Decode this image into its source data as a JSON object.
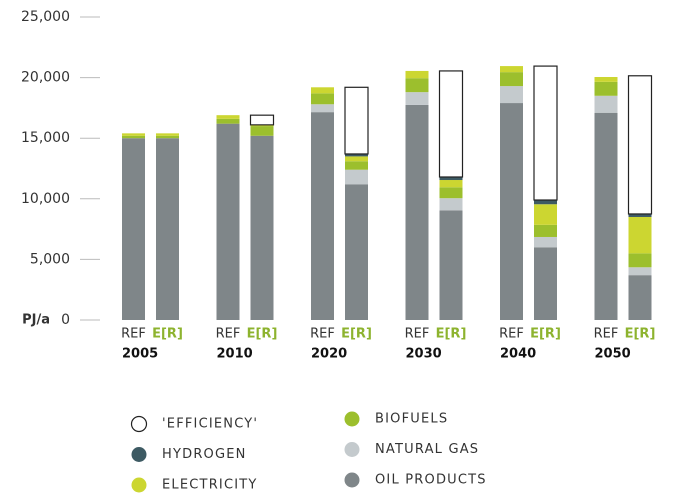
{
  "chart_data": {
    "type": "stacked_bar",
    "y_label": "PJ/a",
    "groups": [
      "2005",
      "2010",
      "2020",
      "2030",
      "2040",
      "2050"
    ],
    "subcategories": [
      "REF",
      "E[R]"
    ],
    "ylim": [
      0,
      25000
    ],
    "yticks": [
      0,
      {
        "value": 5000,
        "label": "5,000"
      },
      {
        "value": 10000,
        "label": "10,000"
      },
      {
        "value": 15000,
        "label": "15,000"
      },
      {
        "value": 20000,
        "label": "20,000"
      },
      {
        "value": 25000,
        "label": "25,000"
      }
    ],
    "series": [
      {
        "name": "OIL PRODUCTS",
        "color": "#7f8689",
        "values": [
          15000,
          15000,
          16200,
          15200,
          17150,
          11200,
          17750,
          9050,
          17900,
          6000,
          17100,
          3700
        ]
      },
      {
        "name": "NATURAL GAS",
        "color": "#c4cacd",
        "values": [
          0,
          0,
          0,
          0,
          650,
          1200,
          1050,
          1000,
          1400,
          850,
          1400,
          650
        ]
      },
      {
        "name": "BIOFUELS",
        "color": "#9cbf2d",
        "values": [
          200,
          200,
          400,
          800,
          900,
          700,
          1150,
          900,
          1150,
          1000,
          1150,
          1150
        ]
      },
      {
        "name": "ELECTRICITY",
        "color": "#ccd631",
        "values": [
          200,
          200,
          300,
          100,
          500,
          400,
          600,
          600,
          500,
          1700,
          400,
          3000
        ]
      },
      {
        "name": "HYDROGEN",
        "color": "#3d5a63",
        "values": [
          0,
          0,
          0,
          0,
          0,
          200,
          0,
          250,
          0,
          350,
          0,
          250
        ]
      },
      {
        "name": "'EFFICIENCY'",
        "color": "#ffffff",
        "values": [
          0,
          0,
          0,
          800,
          0,
          5500,
          0,
          8750,
          0,
          11050,
          0,
          11400
        ]
      }
    ]
  }
}
